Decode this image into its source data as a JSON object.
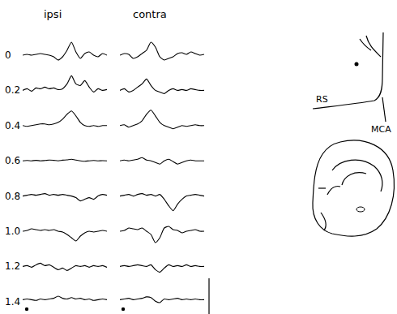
{
  "chart_data": {
    "type": "line",
    "tick_labels": false,
    "column_titles": [
      "ipsi",
      "contra"
    ],
    "row_labels": [
      "0",
      "0.2",
      "0.4",
      "0.6",
      "0.8",
      "1.0",
      "1.2",
      "1.4"
    ],
    "annotations": [
      "RS",
      "MCA"
    ],
    "x": [
      0,
      1,
      2,
      3,
      4,
      5,
      6,
      7,
      8,
      9,
      10,
      11,
      12,
      13,
      14,
      15,
      16,
      17,
      18,
      19
    ],
    "xlim": [
      0,
      19
    ],
    "ylim": [
      -1,
      1
    ],
    "series": [
      {
        "name": "ipsi",
        "color": "#000000",
        "traces": [
          [
            0,
            0.05,
            0,
            0.05,
            0.1,
            0.05,
            0,
            -0.1,
            -0.3,
            -0.1,
            0.3,
            0.8,
            0.2,
            -0.2,
            0.1,
            0.2,
            0,
            -0.1,
            0.1,
            0
          ],
          [
            0,
            0.1,
            -0.05,
            0.15,
            0.1,
            0.2,
            0.1,
            0.15,
            0.05,
            0.1,
            0.4,
            0.9,
            0.4,
            0.3,
            0.6,
            0.2,
            -0.1,
            0.1,
            0,
            0.05
          ],
          [
            0,
            -0.05,
            0,
            0.05,
            0.1,
            0.1,
            0.05,
            0.1,
            0.2,
            0.4,
            0.7,
            0.9,
            0.6,
            0.2,
            0,
            -0.05,
            0,
            -0.05,
            0,
            0
          ],
          [
            0,
            0.02,
            0,
            0.03,
            0,
            0.02,
            0.05,
            0.03,
            0,
            0.04,
            0.06,
            0.1,
            0.05,
            0,
            -0.03,
            0,
            0.02,
            0,
            0.01,
            0
          ],
          [
            0,
            0.05,
            0.1,
            0.05,
            0.1,
            0.15,
            0.05,
            0.1,
            0.05,
            0.1,
            0.05,
            0,
            -0.1,
            -0.3,
            -0.2,
            -0.1,
            -0.2,
            0,
            0.1,
            0.05
          ],
          [
            0,
            0.05,
            0.15,
            0.1,
            0.05,
            0.1,
            0.05,
            0.1,
            0,
            -0.05,
            -0.2,
            -0.4,
            -0.6,
            -0.3,
            -0.1,
            0,
            -0.05,
            0,
            0.05,
            0
          ],
          [
            0,
            0.05,
            -0.05,
            0.1,
            0.2,
            0.05,
            0.1,
            -0.05,
            -0.2,
            -0.1,
            -0.25,
            -0.1,
            0.05,
            0,
            0.05,
            -0.05,
            0.05,
            0,
            0.05,
            -0.05
          ],
          [
            0,
            0.05,
            0,
            -0.05,
            0.05,
            0,
            0.05,
            0.1,
            0.25,
            0.1,
            0.05,
            0.15,
            0.05,
            0.1,
            0,
            0.05,
            -0.05,
            0,
            0.05,
            0
          ]
        ]
      },
      {
        "name": "contra",
        "color": "#000000",
        "traces": [
          [
            0,
            0.1,
            0.05,
            -0.2,
            -0.1,
            0.1,
            0.3,
            0.8,
            0.5,
            -0.1,
            -0.3,
            -0.2,
            -0.1,
            0.1,
            0.15,
            0.05,
            0.2,
            0.1,
            0,
            0.05
          ],
          [
            0,
            0.1,
            -0.1,
            0,
            0.2,
            0.4,
            0.7,
            0.3,
            0,
            -0.1,
            -0.2,
            0,
            0.1,
            0,
            0.05,
            0,
            0.1,
            0.05,
            0,
            0
          ],
          [
            0,
            0.05,
            -0.1,
            0,
            0.1,
            0.3,
            0.7,
            0.95,
            0.6,
            0.2,
            0,
            -0.1,
            -0.2,
            -0.1,
            0,
            -0.05,
            0,
            0.05,
            0,
            0
          ],
          [
            0,
            0.05,
            0,
            0.05,
            0.1,
            0.2,
            0.05,
            0,
            -0.1,
            -0.2,
            0,
            0.1,
            -0.05,
            -0.2,
            -0.1,
            0,
            0.05,
            0,
            0,
            0
          ],
          [
            0,
            0.05,
            0.1,
            0,
            0.1,
            0.15,
            0.05,
            0.1,
            0,
            0.1,
            -0.2,
            -0.6,
            -0.9,
            -0.5,
            -0.2,
            0,
            0.05,
            0.1,
            0.05,
            0
          ],
          [
            0,
            0.05,
            0.2,
            0.15,
            0.1,
            0.2,
            0,
            -0.2,
            -0.7,
            -0.4,
            0.2,
            0.3,
            0.1,
            0.05,
            -0.1,
            0,
            0.05,
            0.1,
            0,
            0
          ],
          [
            0,
            0.05,
            0,
            0.05,
            0.1,
            0.05,
            0,
            0.1,
            -0.2,
            -0.35,
            -0.1,
            0.1,
            0,
            0.05,
            0,
            0.1,
            0,
            0.05,
            0,
            0
          ],
          [
            0,
            0.05,
            0.1,
            0,
            0.05,
            0.1,
            0.2,
            0.15,
            -0.1,
            -0.2,
            0.05,
            0,
            0.05,
            0.1,
            0,
            0.05,
            0,
            0.05,
            0,
            0
          ]
        ]
      }
    ]
  }
}
